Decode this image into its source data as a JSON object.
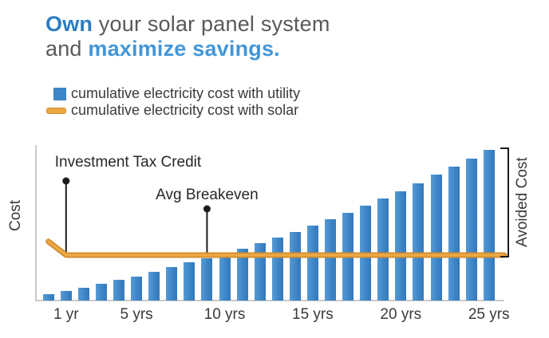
{
  "title": {
    "accent_word": "Own",
    "line1_rest": " your solar panel system",
    "line2_prefix": "and ",
    "accent_phrase": "maximize savings."
  },
  "legend": {
    "utility_label": "cumulative electricity cost with utility",
    "solar_label": "cumulative electricity cost with solar"
  },
  "chart_data": {
    "type": "bar",
    "note": "bar series with horizontal line overlay; y axis unlabeled (relative cost units), x axis in years of ownership",
    "title": "",
    "xlabel": "",
    "ylabel": "Cost",
    "value_units": "relative cost (axis unlabeled)",
    "years": [
      0,
      1,
      2,
      3,
      4,
      5,
      6,
      7,
      8,
      9,
      10,
      11,
      12,
      13,
      14,
      15,
      16,
      17,
      18,
      19,
      20,
      21,
      22,
      23,
      24,
      25
    ],
    "series": [
      {
        "name": "cumulative electricity cost with utility",
        "kind": "bar",
        "values": [
          8,
          12,
          16,
          21,
          26,
          30,
          36,
          42,
          48,
          53,
          59,
          65,
          72,
          79,
          86,
          94,
          102,
          110,
          119,
          128,
          137,
          147,
          158,
          168,
          178,
          189
        ]
      },
      {
        "name": "cumulative electricity cost with solar",
        "kind": "line",
        "values": [
          74,
          57,
          57,
          57,
          57,
          57,
          57,
          57,
          57,
          57,
          57,
          57,
          57,
          57,
          57,
          57,
          57,
          57,
          57,
          57,
          57,
          57,
          57,
          57,
          57,
          57
        ]
      }
    ],
    "x_ticks": [
      {
        "label": "1 yr",
        "year": 1
      },
      {
        "label": "5 yrs",
        "year": 5
      },
      {
        "label": "10 yrs",
        "year": 10
      },
      {
        "label": "15 yrs",
        "year": 15
      },
      {
        "label": "20 yrs",
        "year": 20
      },
      {
        "label": "25 yrs",
        "year": 25
      }
    ],
    "annotations": [
      {
        "id": "itc",
        "label": "Investment Tax Credit",
        "year": 1,
        "dot_value": 150
      },
      {
        "id": "breakeven",
        "label": "Avg Breakeven",
        "year": 9,
        "dot_value": 115
      }
    ],
    "avoided_cost_label": "Avoided Cost",
    "legend_position": "top-left",
    "grid": false
  },
  "colors": {
    "accent_dark": "#2d7cc2",
    "accent_light": "#4296d8",
    "gray_title": "#59595b",
    "text": "#3a3a3c",
    "ink": "#1b1b1b",
    "ink2": "#27272a",
    "bar": "#3d86c8",
    "bar_light": "#569ad4",
    "bar_dark": "#3478bc",
    "line": "#eca945",
    "line_dark": "#d08c2e",
    "axis": "#cacaca"
  }
}
